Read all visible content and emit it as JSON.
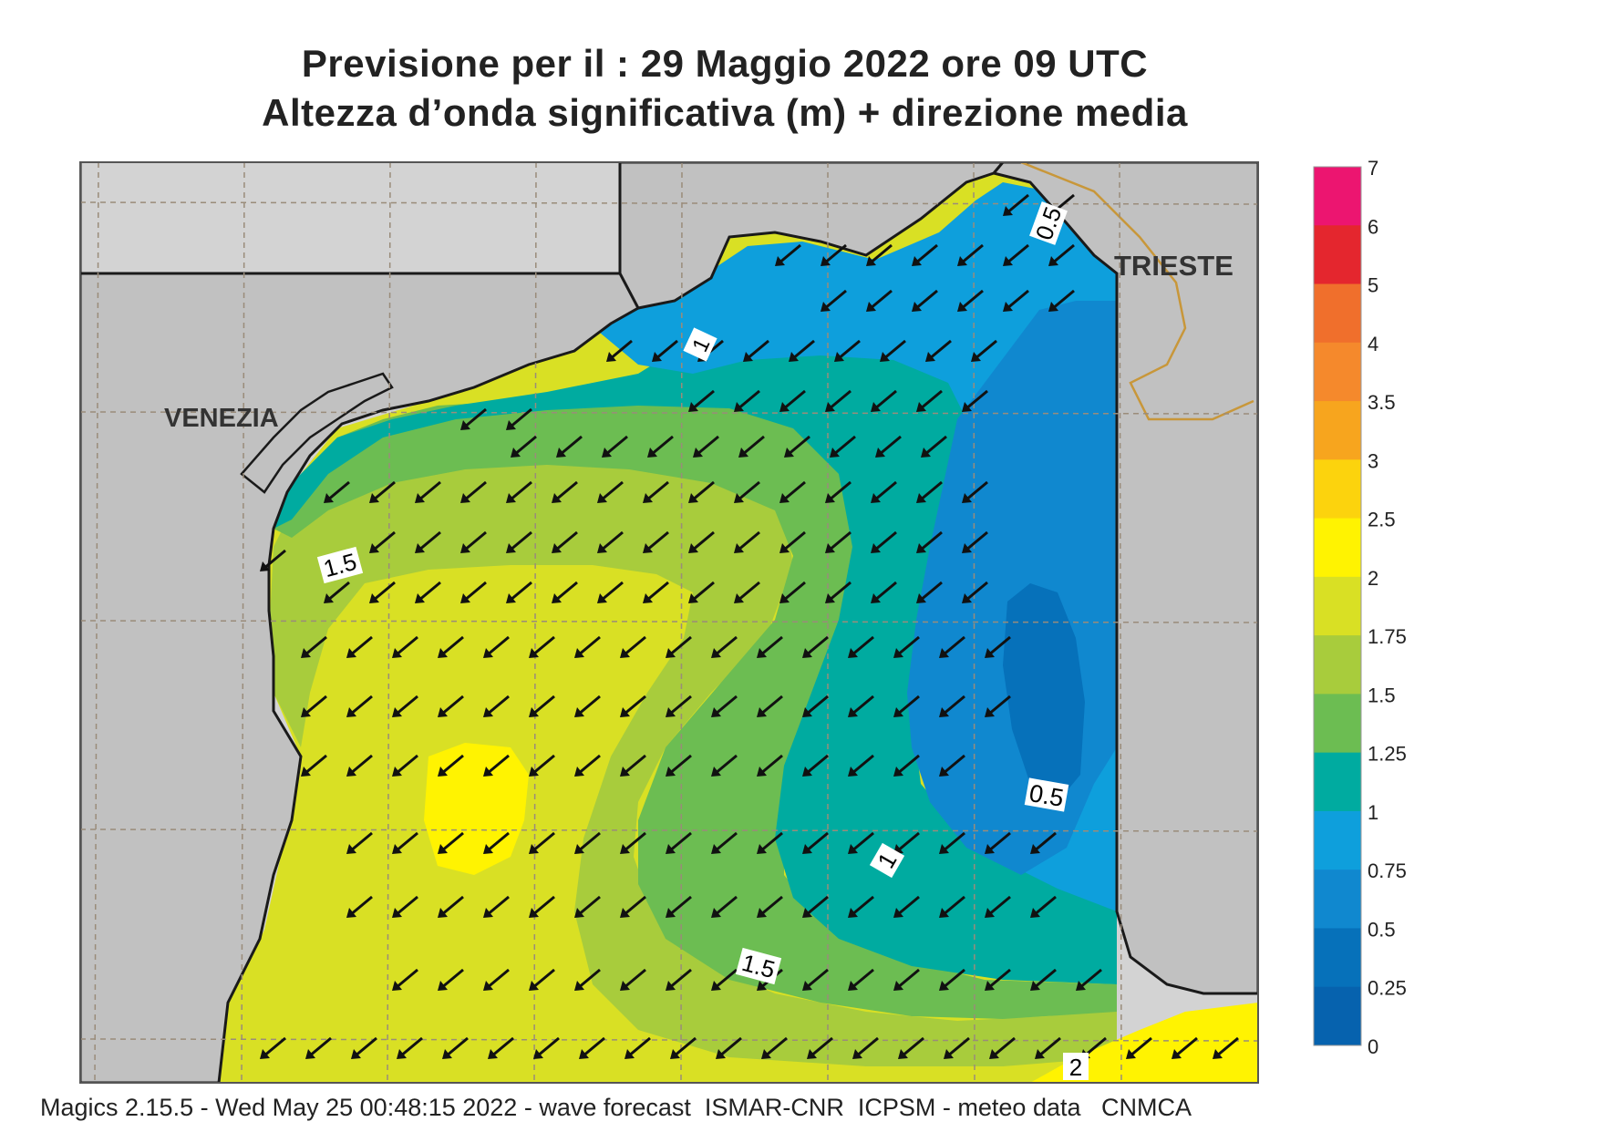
{
  "title": {
    "line1": "Previsione per il  :  29   Maggio  2022   ore 09 UTC",
    "line2": "Altezza d’onda significativa (m) + direzione media"
  },
  "footer": "Magics 2.15.5 - Wed May 25 00:48:15 2022 - wave forecast  ISMAR-CNR  ICPSM - meteo data   CNMCA",
  "cities": [
    {
      "name": "VENEZIA"
    },
    {
      "name": "TRIESTE"
    }
  ],
  "contour_labels": [
    "0.5",
    "1",
    "0.5",
    "1",
    "1.5",
    "1.5",
    "2"
  ],
  "legend": {
    "levels": [
      "7",
      "6",
      "5",
      "4",
      "3.5",
      "3",
      "2.5",
      "2",
      "1.75",
      "1.5",
      "1.25",
      "1",
      "0.75",
      "0.5",
      "0.25",
      "0"
    ],
    "colors": [
      "#ec1570",
      "#e4262e",
      "#f06f2c",
      "#f5892c",
      "#f7a51e",
      "#fcd30d",
      "#fff301",
      "#d9e024",
      "#a8cc3c",
      "#6cbd52",
      "#00aba0",
      "#0e9fdc",
      "#1088cf",
      "#0671ba",
      "#0662ae"
    ]
  },
  "colors": {
    "land": "#d3d3d3",
    "italy_land": "#c1c1c1",
    "coast": "#1a1a1a",
    "border": "#c8973a",
    "grid": "#9a8c7a"
  },
  "direction_arrow": "arrow-southwest-icon"
}
